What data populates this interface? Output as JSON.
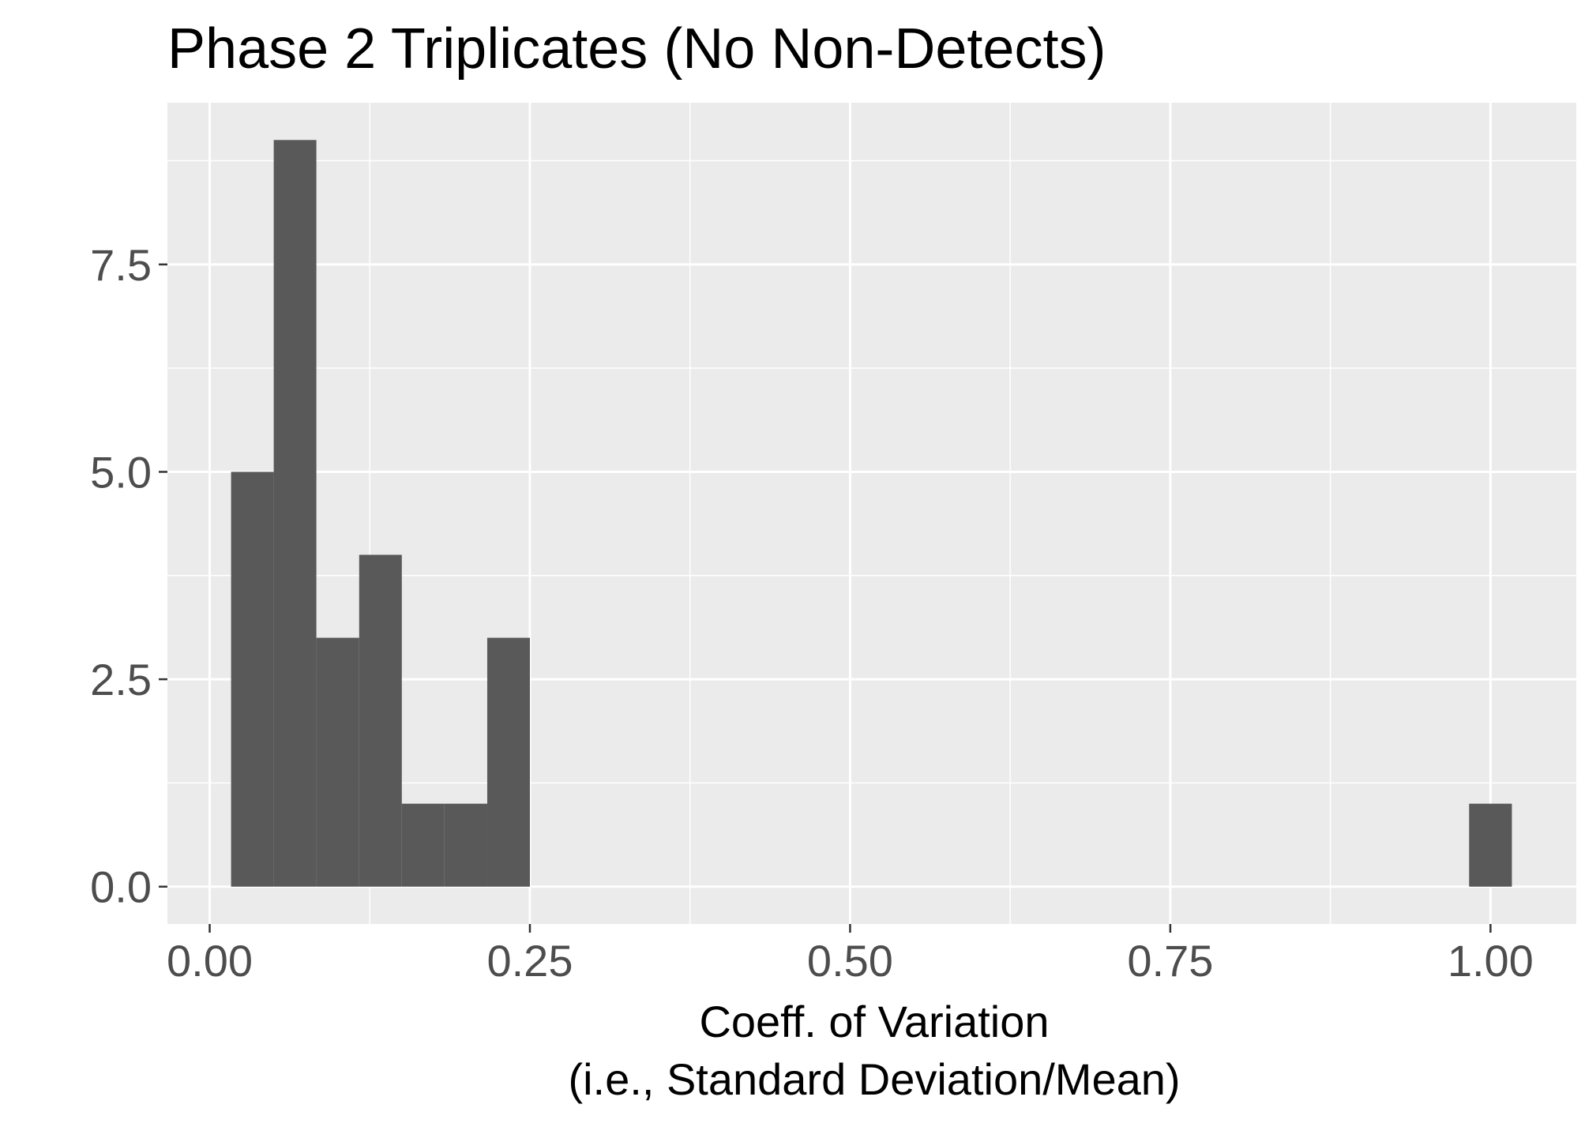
{
  "chart_data": {
    "type": "bar",
    "subtype": "histogram",
    "title": "Phase 2 Triplicates (No Non-Detects)",
    "xlabel": "Coeff. of Variation",
    "xlabel_line2": "(i.e., Standard Deviation/Mean)",
    "ylabel": "",
    "xlim": [
      -0.033,
      1.067
    ],
    "ylim": [
      -0.45,
      9.45
    ],
    "x_ticks": [
      0.0,
      0.25,
      0.5,
      0.75,
      1.0
    ],
    "x_tick_labels": [
      "0.00",
      "0.25",
      "0.50",
      "0.75",
      "1.00"
    ],
    "y_ticks": [
      0.0,
      2.5,
      5.0,
      7.5
    ],
    "y_tick_labels": [
      "0.0",
      "2.5",
      "5.0",
      "7.5"
    ],
    "grid": true,
    "bin_width": 0.0333,
    "bins": [
      {
        "x0": 0.0167,
        "x1": 0.05,
        "count": 5
      },
      {
        "x0": 0.05,
        "x1": 0.0833,
        "count": 9
      },
      {
        "x0": 0.0833,
        "x1": 0.1167,
        "count": 3
      },
      {
        "x0": 0.1167,
        "x1": 0.15,
        "count": 4
      },
      {
        "x0": 0.15,
        "x1": 0.1833,
        "count": 1
      },
      {
        "x0": 0.1833,
        "x1": 0.2167,
        "count": 1
      },
      {
        "x0": 0.2167,
        "x1": 0.25,
        "count": 3
      },
      {
        "x0": 0.9833,
        "x1": 1.0167,
        "count": 1
      }
    ],
    "colors": {
      "panel_background": "#ebebeb",
      "grid_major": "#ffffff",
      "bar_fill": "#595959",
      "tick_label": "#4d4d4d",
      "text": "#000000"
    }
  }
}
